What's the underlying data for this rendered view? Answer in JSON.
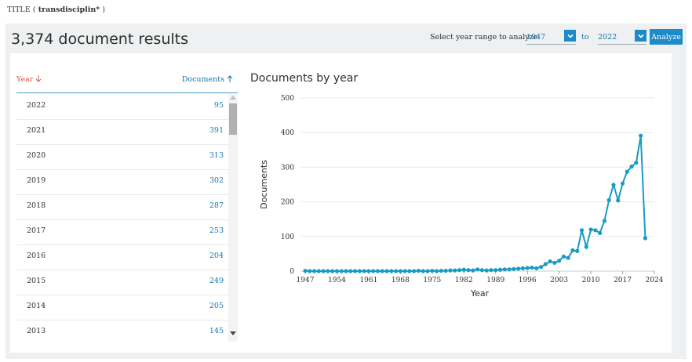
{
  "query": {
    "prefix": "TITLE (",
    "term": " transdisciplin*",
    "suffix": " )"
  },
  "results_title": "3,374 document results",
  "year_range": {
    "label": "Select year range to analyze:",
    "from": "1947",
    "to_label": "to",
    "to": "2022"
  },
  "analyze_label": "Analyze",
  "table": {
    "year_header": "Year",
    "docs_header": "Documents",
    "rows": [
      {
        "year": "2022",
        "count": "95"
      },
      {
        "year": "2021",
        "count": "391"
      },
      {
        "year": "2020",
        "count": "313"
      },
      {
        "year": "2019",
        "count": "302"
      },
      {
        "year": "2018",
        "count": "287"
      },
      {
        "year": "2017",
        "count": "253"
      },
      {
        "year": "2016",
        "count": "204"
      },
      {
        "year": "2015",
        "count": "249"
      },
      {
        "year": "2014",
        "count": "205"
      },
      {
        "year": "2013",
        "count": "145"
      }
    ]
  },
  "colors": {
    "accent": "#1c8bc7",
    "line": "#1a9bc4",
    "sort_active": "#e4533b",
    "link": "#1a73a8"
  },
  "chart_data": {
    "type": "line",
    "title": "Documents by year",
    "xlabel": "Year",
    "ylabel": "Documents",
    "ylim": [
      0,
      500
    ],
    "yticks": [
      0,
      100,
      200,
      300,
      400,
      500
    ],
    "xlim": [
      1947,
      2024
    ],
    "xticks": [
      1947,
      1954,
      1961,
      1968,
      1975,
      1982,
      1989,
      1996,
      2003,
      2010,
      2017,
      2024
    ],
    "grid": true,
    "series": [
      {
        "x": [
          1947,
          1948,
          1949,
          1950,
          1951,
          1952,
          1953,
          1954,
          1955,
          1956,
          1957,
          1958,
          1959,
          1960,
          1961,
          1962,
          1963,
          1964,
          1965,
          1966,
          1967,
          1968,
          1969,
          1970,
          1971,
          1972,
          1973,
          1974,
          1975,
          1976,
          1977,
          1978,
          1979,
          1980,
          1981,
          1982,
          1983,
          1984,
          1985,
          1986,
          1987,
          1988,
          1989,
          1990,
          1991,
          1992,
          1993,
          1994,
          1995,
          1996,
          1997,
          1998,
          1999,
          2000,
          2001,
          2002,
          2003,
          2004,
          2005,
          2006,
          2007,
          2008,
          2009,
          2010,
          2011,
          2012,
          2013,
          2014,
          2015,
          2016,
          2017,
          2018,
          2019,
          2020,
          2021,
          2022
        ],
        "values": [
          1,
          0,
          0,
          0,
          0,
          0,
          0,
          0,
          0,
          0,
          0,
          0,
          0,
          0,
          0,
          0,
          0,
          0,
          0,
          0,
          0,
          0,
          0,
          0,
          0,
          1,
          0,
          0,
          1,
          0,
          1,
          1,
          2,
          2,
          3,
          4,
          3,
          2,
          5,
          3,
          2,
          3,
          3,
          4,
          5,
          5,
          6,
          7,
          8,
          9,
          10,
          8,
          12,
          20,
          28,
          24,
          30,
          42,
          38,
          60,
          58,
          118,
          70,
          120,
          118,
          110,
          145,
          205,
          249,
          204,
          253,
          287,
          302,
          313,
          391,
          95
        ]
      }
    ]
  }
}
